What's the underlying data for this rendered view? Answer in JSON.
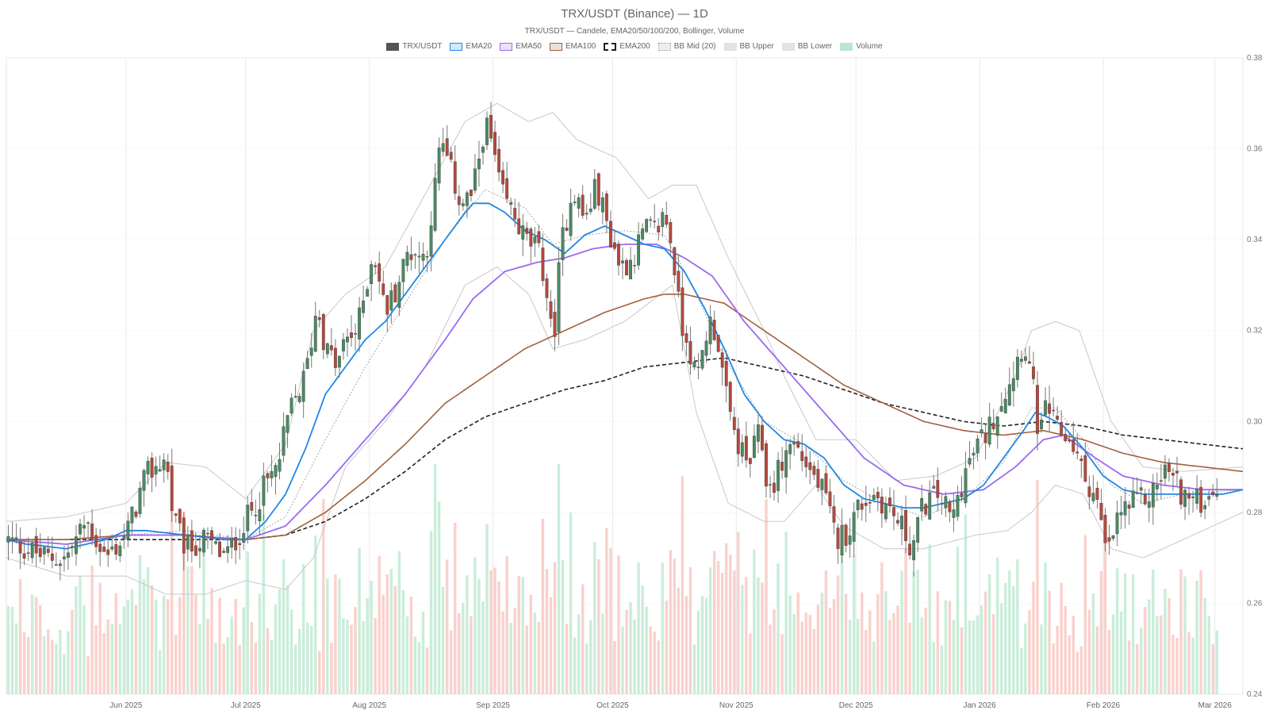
{
  "chart_data": {
    "type": "candlestick",
    "title": "TRX/USDT (Binance) — 1D",
    "subtitle": "TRX/USDT — Candele, EMA20/50/100/200, Bollinger, Volume",
    "legend": [
      {
        "name": "TRX/USDT",
        "color": "#555555",
        "style": "fill"
      },
      {
        "name": "EMA20",
        "color": "#1e88e5",
        "style": "line"
      },
      {
        "name": "EMA50",
        "color": "#9b6af0",
        "style": "line"
      },
      {
        "name": "EMA100",
        "color": "#a0613c",
        "style": "line"
      },
      {
        "name": "EMA200",
        "color": "#222222",
        "style": "dashed"
      },
      {
        "name": "BB Mid (20)",
        "color": "#aaaaaa",
        "style": "dotted"
      },
      {
        "name": "BB Upper",
        "color": "#cccccc",
        "style": "band"
      },
      {
        "name": "BB Lower",
        "color": "#cccccc",
        "style": "band"
      },
      {
        "name": "Volume",
        "color": "#b9e8cc",
        "style": "fill"
      }
    ],
    "x_tick_labels": [
      "Jun 2025",
      "Jul 2025",
      "Aug 2025",
      "Sep 2025",
      "Oct 2025",
      "Nov 2025",
      "Dec 2025",
      "Jan 2026",
      "Feb 2026",
      "Mar 2026"
    ],
    "x_tick_days": [
      25,
      55,
      86,
      117,
      147,
      178,
      208,
      239,
      270,
      298
    ],
    "y_tick_labels": [
      "0.24",
      "0.26",
      "0.28",
      "0.30",
      "0.32",
      "0.34",
      "0.36",
      "0.38"
    ],
    "ylim": [
      0.24,
      0.38
    ],
    "x_range_days": [
      -5,
      305
    ],
    "close_anchors": [
      [
        -5,
        0.274
      ],
      [
        0,
        0.272
      ],
      [
        5,
        0.27
      ],
      [
        10,
        0.27
      ],
      [
        15,
        0.278
      ],
      [
        20,
        0.27
      ],
      [
        25,
        0.275
      ],
      [
        30,
        0.288
      ],
      [
        35,
        0.292
      ],
      [
        37,
        0.278
      ],
      [
        40,
        0.272
      ],
      [
        45,
        0.274
      ],
      [
        50,
        0.27
      ],
      [
        55,
        0.278
      ],
      [
        60,
        0.286
      ],
      [
        63,
        0.29
      ],
      [
        66,
        0.302
      ],
      [
        70,
        0.31
      ],
      [
        73,
        0.326
      ],
      [
        75,
        0.316
      ],
      [
        78,
        0.312
      ],
      [
        80,
        0.318
      ],
      [
        83,
        0.32
      ],
      [
        87,
        0.338
      ],
      [
        90,
        0.324
      ],
      [
        93,
        0.33
      ],
      [
        96,
        0.338
      ],
      [
        100,
        0.336
      ],
      [
        102,
        0.348
      ],
      [
        104,
        0.362
      ],
      [
        106,
        0.356
      ],
      [
        109,
        0.348
      ],
      [
        112,
        0.35
      ],
      [
        115,
        0.366
      ],
      [
        117,
        0.36
      ],
      [
        119,
        0.35
      ],
      [
        122,
        0.346
      ],
      [
        125,
        0.34
      ],
      [
        128,
        0.338
      ],
      [
        130,
        0.332
      ],
      [
        132,
        0.316
      ],
      [
        134,
        0.338
      ],
      [
        137,
        0.352
      ],
      [
        140,
        0.344
      ],
      [
        143,
        0.352
      ],
      [
        146,
        0.342
      ],
      [
        149,
        0.334
      ],
      [
        152,
        0.336
      ],
      [
        155,
        0.342
      ],
      [
        158,
        0.342
      ],
      [
        160,
        0.346
      ],
      [
        162,
        0.338
      ],
      [
        164,
        0.322
      ],
      [
        166,
        0.318
      ],
      [
        168,
        0.308
      ],
      [
        171,
        0.322
      ],
      [
        173,
        0.32
      ],
      [
        176,
        0.302
      ],
      [
        178,
        0.296
      ],
      [
        181,
        0.29
      ],
      [
        184,
        0.298
      ],
      [
        186,
        0.284
      ],
      [
        189,
        0.29
      ],
      [
        192,
        0.296
      ],
      [
        196,
        0.29
      ],
      [
        200,
        0.284
      ],
      [
        203,
        0.274
      ],
      [
        206,
        0.276
      ],
      [
        209,
        0.282
      ],
      [
        213,
        0.284
      ],
      [
        217,
        0.28
      ],
      [
        220,
        0.276
      ],
      [
        222,
        0.272
      ],
      [
        225,
        0.282
      ],
      [
        229,
        0.284
      ],
      [
        232,
        0.278
      ],
      [
        235,
        0.288
      ],
      [
        238,
        0.294
      ],
      [
        241,
        0.298
      ],
      [
        244,
        0.304
      ],
      [
        247,
        0.31
      ],
      [
        250,
        0.318
      ],
      [
        252,
        0.31
      ],
      [
        254,
        0.296
      ],
      [
        256,
        0.304
      ],
      [
        258,
        0.298
      ],
      [
        262,
        0.296
      ],
      [
        265,
        0.288
      ],
      [
        268,
        0.284
      ],
      [
        271,
        0.27
      ],
      [
        274,
        0.28
      ],
      [
        278,
        0.282
      ],
      [
        282,
        0.284
      ],
      [
        286,
        0.29
      ],
      [
        290,
        0.284
      ],
      [
        294,
        0.282
      ],
      [
        298,
        0.286
      ],
      [
        302,
        0.288
      ],
      [
        305,
        0.286
      ]
    ],
    "ema20_anchors": [
      [
        -5,
        0.274
      ],
      [
        0,
        0.273
      ],
      [
        10,
        0.272
      ],
      [
        20,
        0.274
      ],
      [
        25,
        0.276
      ],
      [
        30,
        0.276
      ],
      [
        40,
        0.275
      ],
      [
        50,
        0.274
      ],
      [
        55,
        0.274
      ],
      [
        60,
        0.278
      ],
      [
        65,
        0.284
      ],
      [
        70,
        0.294
      ],
      [
        75,
        0.306
      ],
      [
        80,
        0.312
      ],
      [
        85,
        0.318
      ],
      [
        90,
        0.322
      ],
      [
        95,
        0.328
      ],
      [
        100,
        0.334
      ],
      [
        105,
        0.34
      ],
      [
        110,
        0.346
      ],
      [
        112,
        0.348
      ],
      [
        116,
        0.348
      ],
      [
        120,
        0.346
      ],
      [
        125,
        0.342
      ],
      [
        130,
        0.34
      ],
      [
        135,
        0.337
      ],
      [
        140,
        0.341
      ],
      [
        145,
        0.343
      ],
      [
        150,
        0.341
      ],
      [
        155,
        0.339
      ],
      [
        160,
        0.338
      ],
      [
        165,
        0.333
      ],
      [
        170,
        0.325
      ],
      [
        175,
        0.316
      ],
      [
        180,
        0.306
      ],
      [
        185,
        0.3
      ],
      [
        190,
        0.296
      ],
      [
        195,
        0.295
      ],
      [
        200,
        0.292
      ],
      [
        205,
        0.286
      ],
      [
        210,
        0.283
      ],
      [
        215,
        0.282
      ],
      [
        220,
        0.281
      ],
      [
        225,
        0.281
      ],
      [
        230,
        0.282
      ],
      [
        235,
        0.283
      ],
      [
        240,
        0.286
      ],
      [
        245,
        0.292
      ],
      [
        250,
        0.298
      ],
      [
        253,
        0.302
      ],
      [
        256,
        0.301
      ],
      [
        260,
        0.299
      ],
      [
        265,
        0.294
      ],
      [
        270,
        0.288
      ],
      [
        275,
        0.285
      ],
      [
        280,
        0.284
      ],
      [
        285,
        0.284
      ],
      [
        290,
        0.284
      ],
      [
        295,
        0.284
      ],
      [
        300,
        0.284
      ],
      [
        305,
        0.285
      ]
    ],
    "ema50_anchors": [
      [
        -5,
        0.274
      ],
      [
        10,
        0.273
      ],
      [
        25,
        0.275
      ],
      [
        40,
        0.275
      ],
      [
        55,
        0.274
      ],
      [
        65,
        0.277
      ],
      [
        75,
        0.286
      ],
      [
        85,
        0.296
      ],
      [
        95,
        0.306
      ],
      [
        105,
        0.318
      ],
      [
        112,
        0.327
      ],
      [
        120,
        0.333
      ],
      [
        128,
        0.335
      ],
      [
        135,
        0.336
      ],
      [
        142,
        0.338
      ],
      [
        150,
        0.339
      ],
      [
        158,
        0.339
      ],
      [
        165,
        0.336
      ],
      [
        172,
        0.332
      ],
      [
        180,
        0.322
      ],
      [
        190,
        0.312
      ],
      [
        200,
        0.302
      ],
      [
        210,
        0.292
      ],
      [
        220,
        0.286
      ],
      [
        230,
        0.284
      ],
      [
        240,
        0.285
      ],
      [
        248,
        0.29
      ],
      [
        255,
        0.296
      ],
      [
        260,
        0.297
      ],
      [
        268,
        0.292
      ],
      [
        275,
        0.288
      ],
      [
        285,
        0.286
      ],
      [
        295,
        0.285
      ],
      [
        305,
        0.285
      ]
    ],
    "ema100_anchors": [
      [
        -5,
        0.274
      ],
      [
        10,
        0.274
      ],
      [
        25,
        0.275
      ],
      [
        40,
        0.275
      ],
      [
        55,
        0.274
      ],
      [
        65,
        0.275
      ],
      [
        75,
        0.28
      ],
      [
        85,
        0.287
      ],
      [
        95,
        0.295
      ],
      [
        105,
        0.304
      ],
      [
        115,
        0.31
      ],
      [
        125,
        0.316
      ],
      [
        135,
        0.32
      ],
      [
        145,
        0.324
      ],
      [
        155,
        0.327
      ],
      [
        160,
        0.328
      ],
      [
        165,
        0.328
      ],
      [
        175,
        0.326
      ],
      [
        185,
        0.32
      ],
      [
        195,
        0.314
      ],
      [
        205,
        0.308
      ],
      [
        215,
        0.304
      ],
      [
        225,
        0.3
      ],
      [
        235,
        0.298
      ],
      [
        245,
        0.297
      ],
      [
        255,
        0.298
      ],
      [
        265,
        0.296
      ],
      [
        275,
        0.293
      ],
      [
        285,
        0.291
      ],
      [
        295,
        0.29
      ],
      [
        305,
        0.289
      ]
    ],
    "ema200_anchors": [
      [
        -5,
        0.274
      ],
      [
        20,
        0.274
      ],
      [
        40,
        0.274
      ],
      [
        55,
        0.274
      ],
      [
        65,
        0.275
      ],
      [
        75,
        0.278
      ],
      [
        85,
        0.283
      ],
      [
        95,
        0.289
      ],
      [
        105,
        0.296
      ],
      [
        115,
        0.301
      ],
      [
        125,
        0.304
      ],
      [
        135,
        0.307
      ],
      [
        145,
        0.309
      ],
      [
        155,
        0.312
      ],
      [
        165,
        0.313
      ],
      [
        175,
        0.314
      ],
      [
        185,
        0.312
      ],
      [
        195,
        0.31
      ],
      [
        205,
        0.307
      ],
      [
        215,
        0.304
      ],
      [
        225,
        0.302
      ],
      [
        235,
        0.3
      ],
      [
        245,
        0.299
      ],
      [
        255,
        0.3
      ],
      [
        265,
        0.299
      ],
      [
        275,
        0.297
      ],
      [
        285,
        0.296
      ],
      [
        295,
        0.295
      ],
      [
        305,
        0.294
      ]
    ],
    "bb_mid_anchors": [
      [
        -5,
        0.274
      ],
      [
        10,
        0.272
      ],
      [
        25,
        0.275
      ],
      [
        40,
        0.276
      ],
      [
        55,
        0.274
      ],
      [
        65,
        0.279
      ],
      [
        75,
        0.296
      ],
      [
        85,
        0.312
      ],
      [
        95,
        0.326
      ],
      [
        105,
        0.34
      ],
      [
        115,
        0.351
      ],
      [
        125,
        0.347
      ],
      [
        132,
        0.339
      ],
      [
        140,
        0.341
      ],
      [
        150,
        0.342
      ],
      [
        160,
        0.341
      ],
      [
        167,
        0.33
      ],
      [
        175,
        0.314
      ],
      [
        185,
        0.3
      ],
      [
        195,
        0.295
      ],
      [
        205,
        0.287
      ],
      [
        215,
        0.282
      ],
      [
        225,
        0.279
      ],
      [
        235,
        0.283
      ],
      [
        245,
        0.291
      ],
      [
        252,
        0.303
      ],
      [
        258,
        0.303
      ],
      [
        265,
        0.296
      ],
      [
        272,
        0.286
      ],
      [
        280,
        0.282
      ],
      [
        290,
        0.284
      ],
      [
        305,
        0.285
      ]
    ],
    "bb_upper_anchors": [
      [
        -5,
        0.278
      ],
      [
        10,
        0.279
      ],
      [
        25,
        0.282
      ],
      [
        35,
        0.291
      ],
      [
        45,
        0.29
      ],
      [
        55,
        0.283
      ],
      [
        65,
        0.295
      ],
      [
        72,
        0.32
      ],
      [
        80,
        0.328
      ],
      [
        90,
        0.334
      ],
      [
        100,
        0.35
      ],
      [
        110,
        0.366
      ],
      [
        118,
        0.37
      ],
      [
        126,
        0.366
      ],
      [
        132,
        0.368
      ],
      [
        138,
        0.362
      ],
      [
        148,
        0.358
      ],
      [
        156,
        0.349
      ],
      [
        162,
        0.352
      ],
      [
        168,
        0.352
      ],
      [
        176,
        0.336
      ],
      [
        185,
        0.32
      ],
      [
        190,
        0.31
      ],
      [
        198,
        0.296
      ],
      [
        208,
        0.296
      ],
      [
        218,
        0.287
      ],
      [
        228,
        0.288
      ],
      [
        238,
        0.292
      ],
      [
        248,
        0.31
      ],
      [
        252,
        0.32
      ],
      [
        258,
        0.322
      ],
      [
        264,
        0.32
      ],
      [
        272,
        0.3
      ],
      [
        280,
        0.29
      ],
      [
        290,
        0.289
      ],
      [
        305,
        0.29
      ]
    ],
    "bb_lower_anchors": [
      [
        -5,
        0.27
      ],
      [
        10,
        0.266
      ],
      [
        25,
        0.266
      ],
      [
        35,
        0.262
      ],
      [
        45,
        0.262
      ],
      [
        55,
        0.265
      ],
      [
        65,
        0.263
      ],
      [
        72,
        0.27
      ],
      [
        80,
        0.29
      ],
      [
        90,
        0.3
      ],
      [
        100,
        0.312
      ],
      [
        110,
        0.33
      ],
      [
        118,
        0.334
      ],
      [
        126,
        0.328
      ],
      [
        132,
        0.316
      ],
      [
        140,
        0.318
      ],
      [
        150,
        0.322
      ],
      [
        156,
        0.326
      ],
      [
        162,
        0.33
      ],
      [
        168,
        0.302
      ],
      [
        176,
        0.282
      ],
      [
        185,
        0.278
      ],
      [
        190,
        0.278
      ],
      [
        198,
        0.286
      ],
      [
        205,
        0.277
      ],
      [
        215,
        0.272
      ],
      [
        225,
        0.272
      ],
      [
        238,
        0.275
      ],
      [
        246,
        0.276
      ],
      [
        252,
        0.28
      ],
      [
        258,
        0.286
      ],
      [
        265,
        0.284
      ],
      [
        272,
        0.272
      ],
      [
        280,
        0.27
      ],
      [
        290,
        0.274
      ],
      [
        305,
        0.28
      ]
    ]
  }
}
